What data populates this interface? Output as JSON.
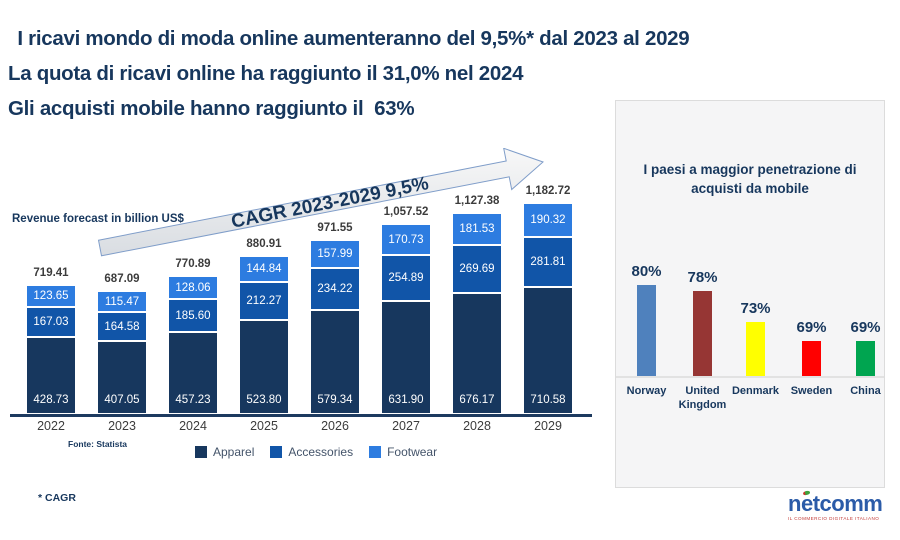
{
  "slide": {
    "title_lines": [
      " I ricavi mondo di moda online aumenteranno del 9,5%* dal 2023 al 2029",
      "La quota di ricavi online ha raggiunto il 31,0% nel 2024",
      "Gli acquisti mobile hanno raggiunto il  63%"
    ],
    "title_color": "#17375d"
  },
  "chart_data": [
    {
      "type": "bar",
      "stacked": true,
      "title": "Revenue forecast in billion US$",
      "annotation": "CAGR 2023-2029  9,5%",
      "source": "Fonte: Statista",
      "footnote": "* CAGR",
      "legend_position": "bottom",
      "categories": [
        "2022",
        "2023",
        "2024",
        "2025",
        "2026",
        "2027",
        "2028",
        "2029"
      ],
      "series": [
        {
          "name": "Apparel",
          "color": "#17375e",
          "values": [
            428.73,
            407.05,
            457.23,
            523.8,
            579.34,
            631.9,
            676.17,
            710.58
          ]
        },
        {
          "name": "Accessories",
          "color": "#1155a8",
          "values": [
            167.03,
            164.58,
            185.6,
            212.27,
            234.22,
            254.89,
            269.69,
            281.81
          ]
        },
        {
          "name": "Footwear",
          "color": "#2d7ce0",
          "values": [
            123.65,
            115.47,
            128.06,
            144.84,
            157.99,
            170.73,
            181.53,
            190.32
          ]
        }
      ],
      "totals": [
        719.41,
        687.09,
        770.89,
        880.91,
        971.55,
        1057.52,
        1127.38,
        1182.72
      ],
      "totals_labels": [
        "719.41",
        "687.09",
        "770.89",
        "880.91",
        "971.55",
        "1,057.52",
        "1,127.38",
        "1,182.72"
      ]
    },
    {
      "type": "bar",
      "title": "I paesi a maggior penetrazione di acquisti da mobile",
      "categories": [
        "Norway",
        "United Kingdom",
        "Denmark",
        "Sweden",
        "China"
      ],
      "values": [
        80,
        78,
        73,
        69,
        69
      ],
      "labels": [
        "80%",
        "78%",
        "73%",
        "69%",
        "69%"
      ],
      "colors": [
        "#4f81bd",
        "#963634",
        "#ffff00",
        "#ff0000",
        "#00a550"
      ],
      "ylim": [
        0,
        100
      ],
      "grid": false
    }
  ],
  "logo": {
    "name_part1": "n",
    "name_part2": "e",
    "name_part3": "tcomm",
    "tagline": "IL COMMERCIO DIGITALE ITALIANO"
  }
}
